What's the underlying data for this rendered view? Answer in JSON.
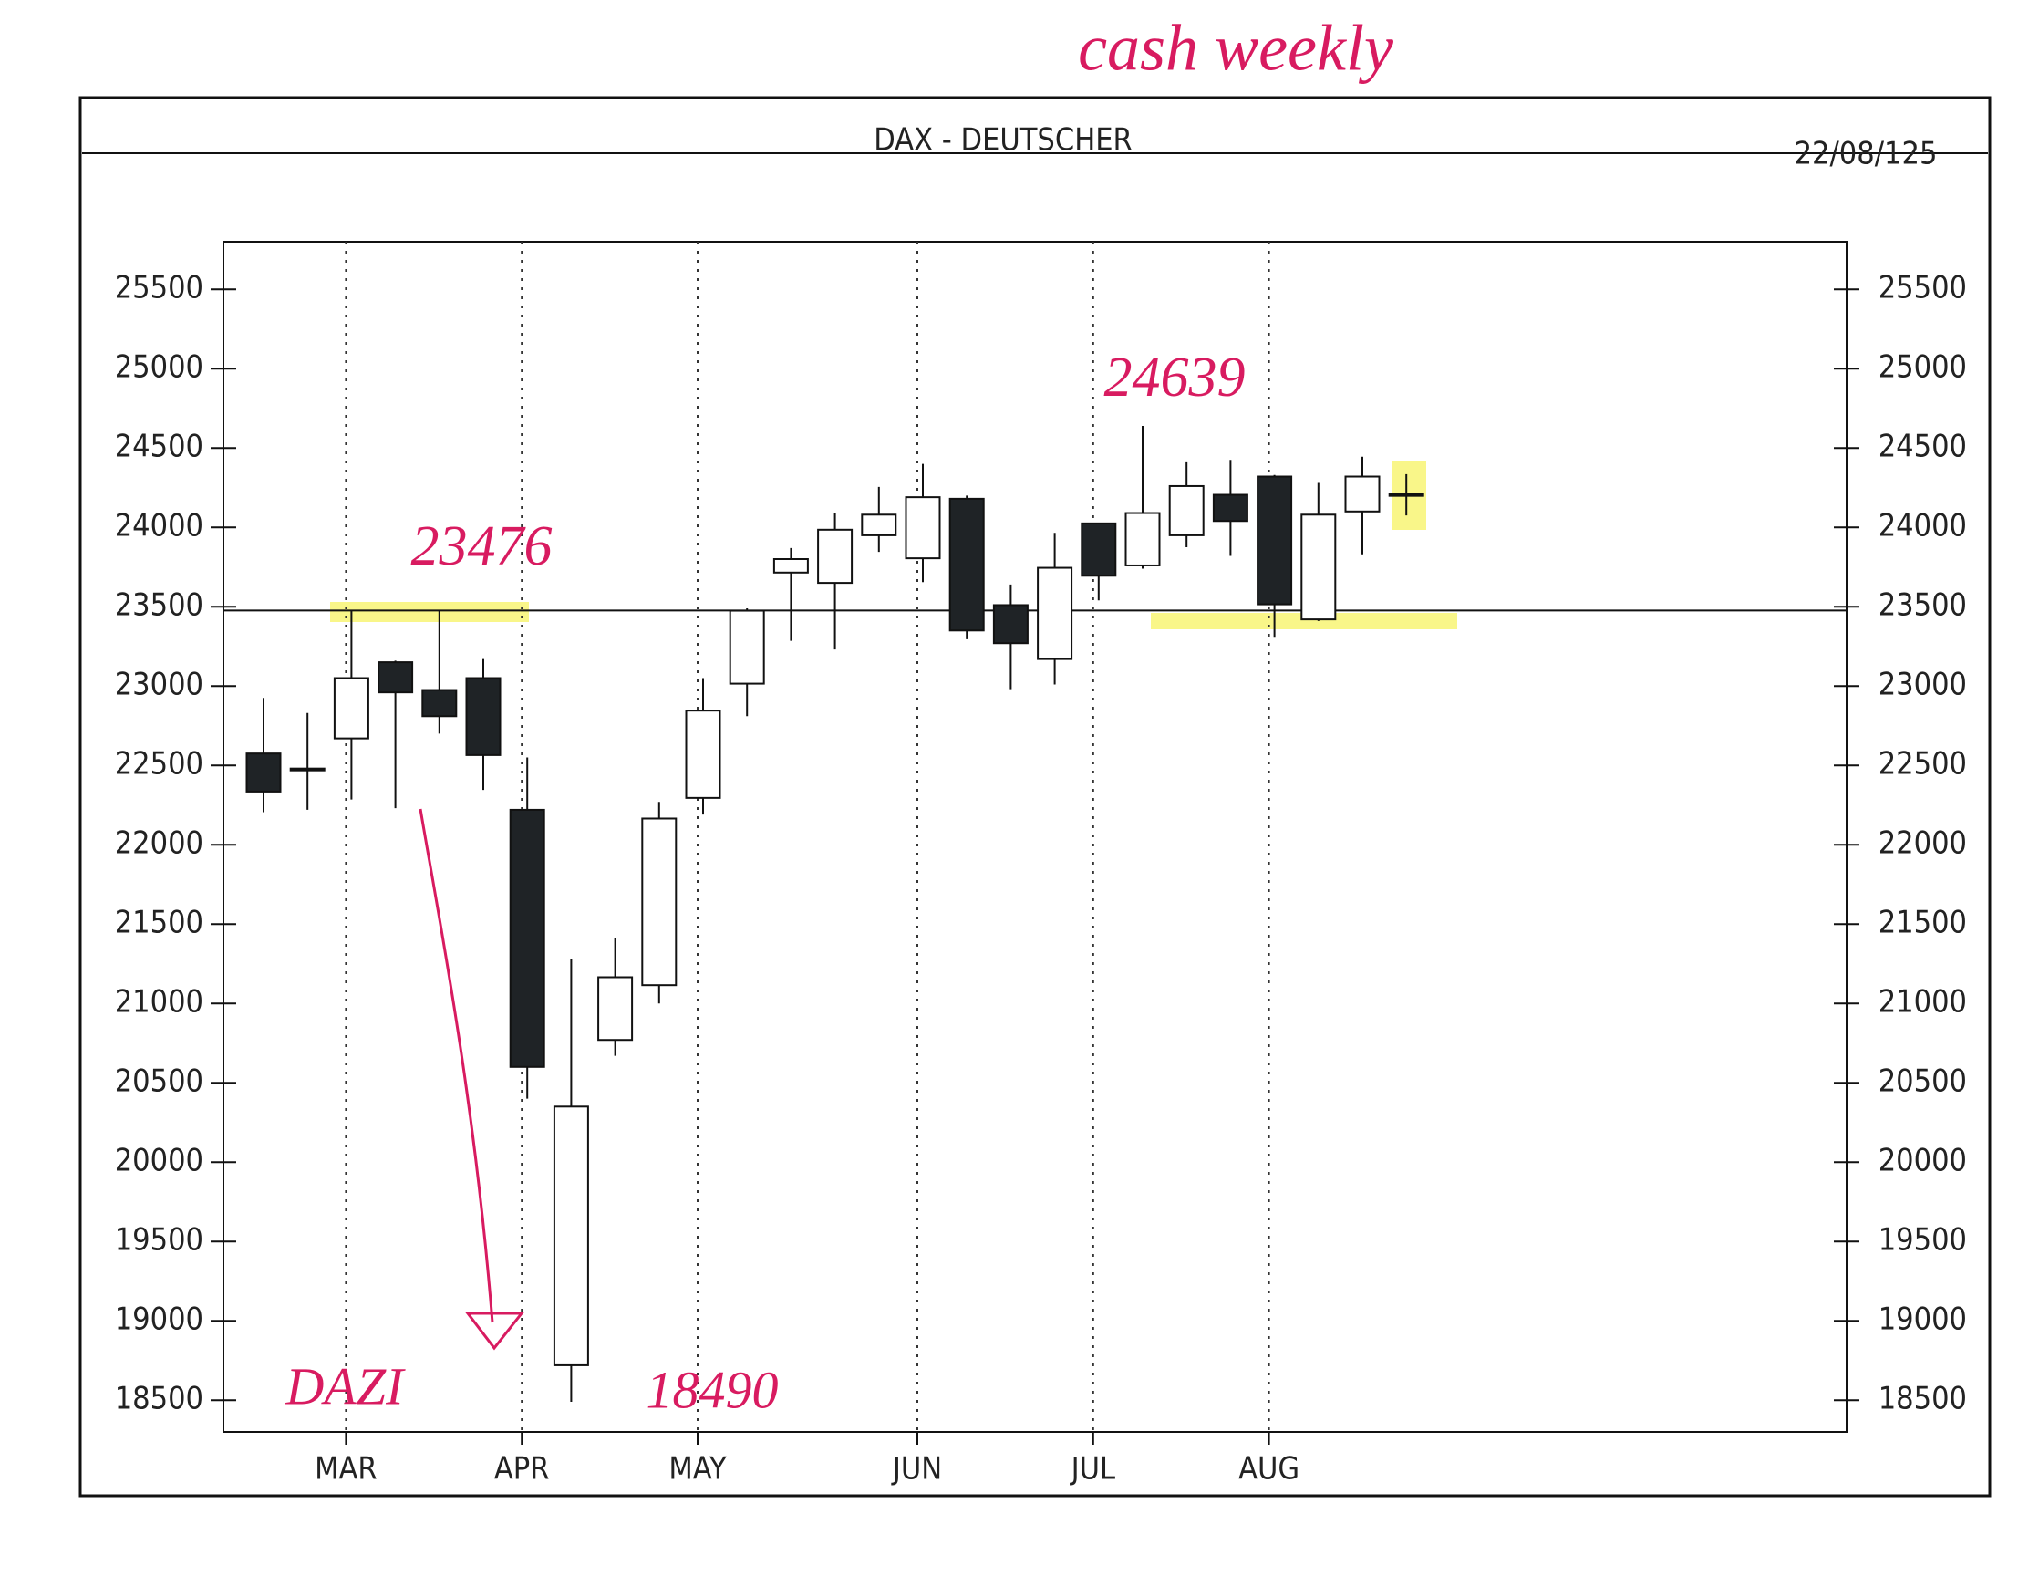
{
  "chart_data": {
    "type": "candlestick",
    "title": "DAX - DEUTSCHER",
    "subtitle": "22/08/125",
    "categories": [
      null,
      null,
      "MAR",
      null,
      null,
      null,
      "APR",
      null,
      null,
      null,
      "MAY",
      null,
      null,
      null,
      null,
      "JUN",
      null,
      null,
      null,
      "JUL",
      null,
      null,
      null,
      "AUG",
      null,
      null,
      null
    ],
    "open": [
      22575,
      22470,
      22670,
      23150,
      22975,
      23050,
      22220,
      18720,
      20770,
      21115,
      22295,
      23015,
      23715,
      23650,
      23950,
      23805,
      24180,
      23510,
      23170,
      24025,
      23760,
      23950,
      24205,
      24320,
      23420,
      24100,
      24200
    ],
    "close": [
      22335,
      22480,
      23050,
      22960,
      22810,
      22565,
      20600,
      20350,
      21165,
      22165,
      22845,
      23475,
      23800,
      23985,
      24080,
      24190,
      23350,
      23270,
      23745,
      23695,
      24090,
      24260,
      24040,
      23515,
      24080,
      24320,
      24210
    ],
    "high": [
      22925,
      22830,
      23475,
      23160,
      23476,
      23170,
      22550,
      21280,
      21410,
      22270,
      23050,
      23490,
      23870,
      24090,
      24255,
      24400,
      24200,
      23640,
      23965,
      24030,
      24639,
      24410,
      24425,
      24330,
      24280,
      24445,
      24335
    ],
    "low": [
      22205,
      22220,
      22285,
      22230,
      22700,
      22345,
      20400,
      18490,
      20670,
      21000,
      22190,
      22810,
      23285,
      23230,
      23845,
      23655,
      23295,
      22980,
      23010,
      23540,
      23740,
      23875,
      23820,
      23310,
      23410,
      23830,
      24075
    ],
    "up_color": "#ffffff",
    "down_color": "#1f2326",
    "ylim": [
      18300,
      25800
    ],
    "yticks": [
      18500,
      19000,
      19500,
      20000,
      20500,
      21000,
      21500,
      22000,
      22500,
      23000,
      23500,
      24000,
      24500,
      25000,
      25500
    ],
    "support_level": 23476,
    "annotations": [
      "cash weekly",
      "23476",
      "24639",
      "DAZI",
      "18490"
    ]
  }
}
